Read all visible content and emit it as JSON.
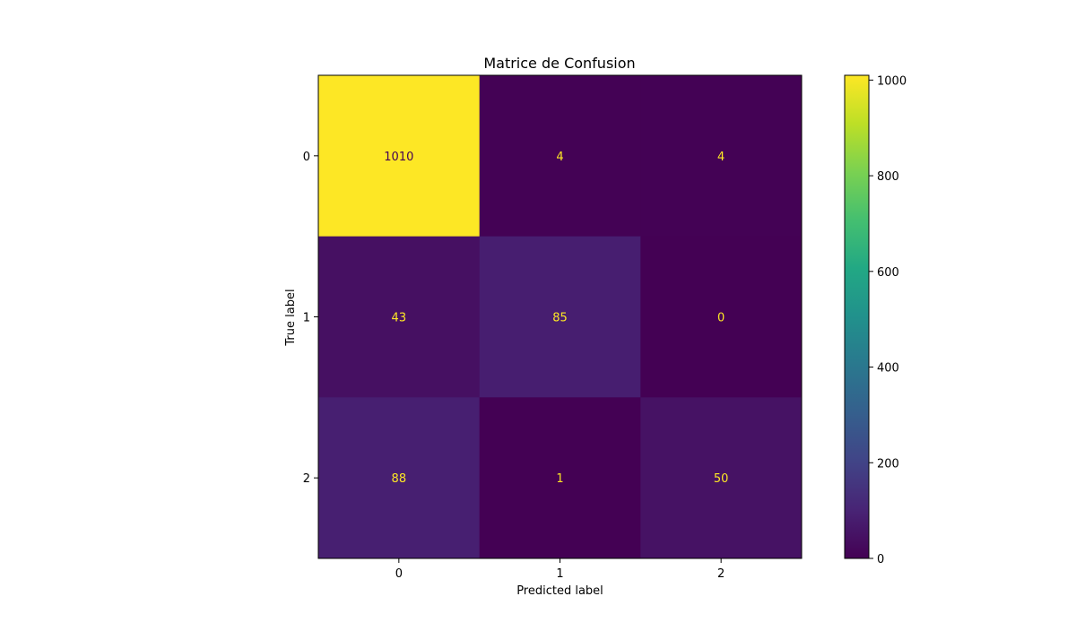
{
  "chart_data": {
    "type": "heatmap",
    "title": "Matrice de Confusion",
    "xlabel": "Predicted label",
    "ylabel": "True label",
    "x_categories": [
      "0",
      "1",
      "2"
    ],
    "y_categories": [
      "0",
      "1",
      "2"
    ],
    "matrix": [
      [
        1010,
        4,
        4
      ],
      [
        43,
        85,
        0
      ],
      [
        88,
        1,
        50
      ]
    ],
    "colormap": "viridis",
    "colorbar": {
      "range": [
        0,
        1010
      ],
      "ticks": [
        0,
        200,
        400,
        600,
        800,
        1000
      ]
    },
    "annotation_colors": {
      "on_dark": "#fde725",
      "on_light": "#440154"
    },
    "grid": false
  }
}
